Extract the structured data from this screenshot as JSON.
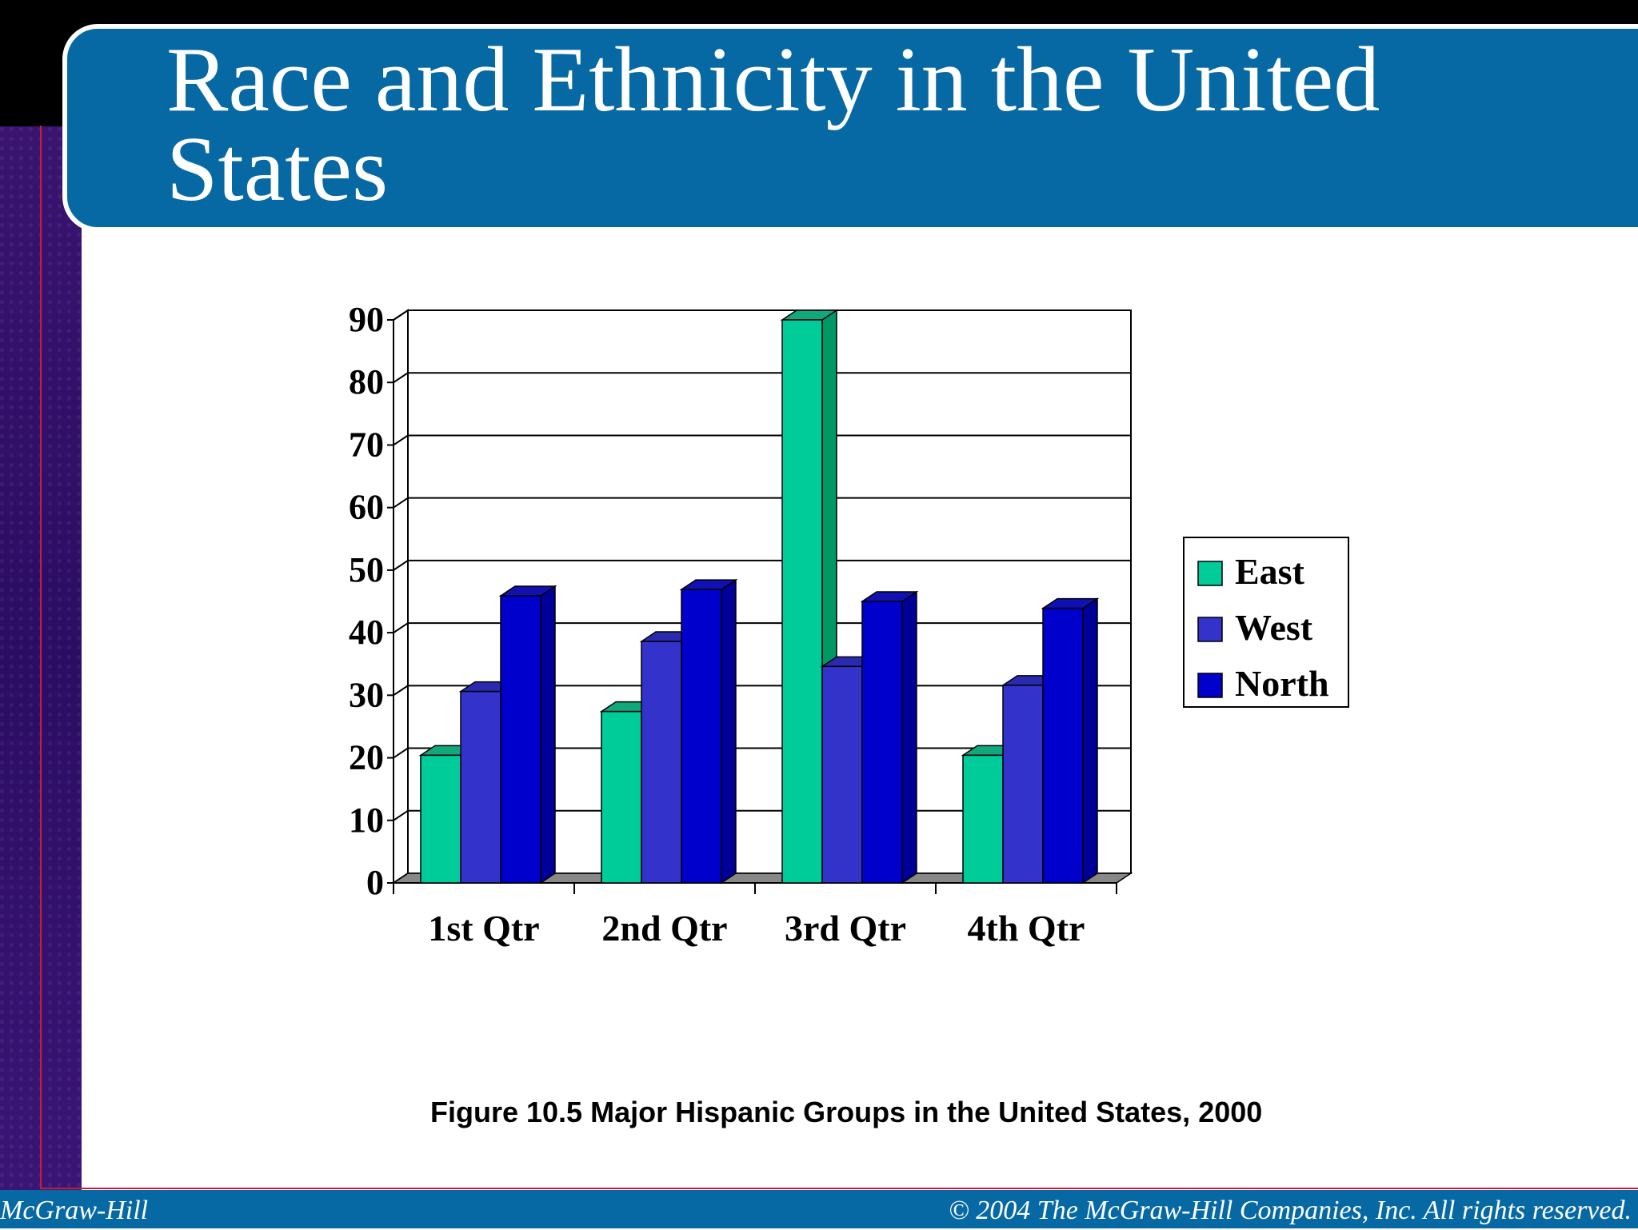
{
  "slide": {
    "title": "Race and Ethnicity in the United States",
    "title_line1": "Race and Ethnicity in the United",
    "title_line2": "States",
    "caption": "Figure 10.5 Major Hispanic Groups in the United States, 2000",
    "footer_left": "McGraw-Hill",
    "footer_right": "© 2004 The McGraw-Hill Companies, Inc. All rights reserved."
  },
  "colors": {
    "title_bar": "#0769a4",
    "left_strip": "#2b0d63",
    "accent_line": "#c2203a"
  },
  "chart_data": {
    "type": "bar",
    "title": "",
    "xlabel": "",
    "ylabel": "",
    "categories": [
      "1st Qtr",
      "2nd Qtr",
      "3rd Qtr",
      "4th Qtr"
    ],
    "series": [
      {
        "name": "East",
        "values": [
          20.4,
          27.4,
          90,
          20.4
        ],
        "color": "#00cc99",
        "side": "#009966",
        "top": "#10a87c"
      },
      {
        "name": "West",
        "values": [
          30.6,
          38.6,
          34.6,
          31.6
        ],
        "color": "#3333cc",
        "side": "#222299",
        "top": "#2a2ab0"
      },
      {
        "name": "North",
        "values": [
          45.9,
          46.9,
          45,
          43.9
        ],
        "color": "#0000cc",
        "side": "#000099",
        "top": "#1111b3"
      }
    ],
    "ylim": [
      0,
      90
    ],
    "yticks": [
      0,
      10,
      20,
      30,
      40,
      50,
      60,
      70,
      80,
      90
    ],
    "grid": true,
    "legend": "right",
    "style": "3d-clustered-column"
  }
}
